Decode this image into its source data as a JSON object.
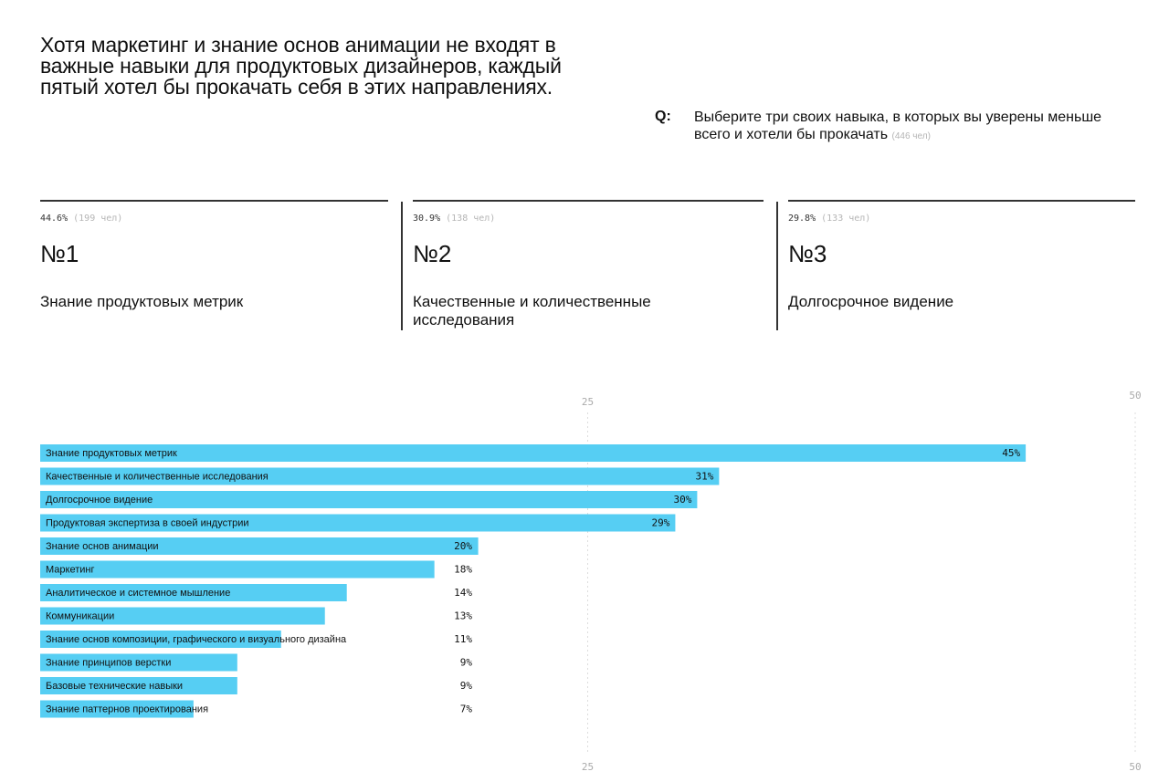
{
  "headline": "Хотя маркетинг и знание основ анимации не входят в важные навыки для продуктовых дизайнеров, каждый пятый хотел бы прокачать себя в этих направлениях.",
  "question": {
    "prefix": "Q:",
    "text": "Выберите три своих навыка, в которых вы уверены меньше всего и хотели бы прокачать",
    "count": "(446 чел)"
  },
  "top3": [
    {
      "pct": "44.6%",
      "count": "(199 чел)",
      "rank": "№1",
      "name": "Знание продуктовых метрик"
    },
    {
      "pct": "30.9%",
      "count": "(138 чел)",
      "rank": "№2",
      "name": "Качественные и количественные исследования"
    },
    {
      "pct": "29.8%",
      "count": "(133 чел)",
      "rank": "№3",
      "name": "Долгосрочное видение"
    }
  ],
  "chart_data": {
    "type": "bar",
    "orientation": "horizontal",
    "xlim": [
      0,
      50
    ],
    "xticks": [
      "25",
      "50"
    ],
    "grid": true,
    "bar_color": "#56CEF3",
    "categories": [
      "Знание продуктовых метрик",
      "Качественные и количественные исследования",
      "Долгосрочное видение",
      "Продуктовая экспертиза в своей индустрии",
      "Знание основ анимации",
      "Маркетинг",
      "Аналитическое и системное мышление",
      "Коммуникации",
      "Знание основ композиции, графического и визуального дизайна",
      "Знание принципов верстки",
      "Базовые технические навыки",
      "Знание паттернов проектирования"
    ],
    "values": [
      45,
      31,
      30,
      29,
      20,
      18,
      14,
      13,
      11,
      9,
      9,
      7
    ],
    "value_labels": [
      "45%",
      "31%",
      "30%",
      "29%",
      "20%",
      "18%",
      "14%",
      "13%",
      "11%",
      "9%",
      "9%",
      "7%"
    ]
  }
}
